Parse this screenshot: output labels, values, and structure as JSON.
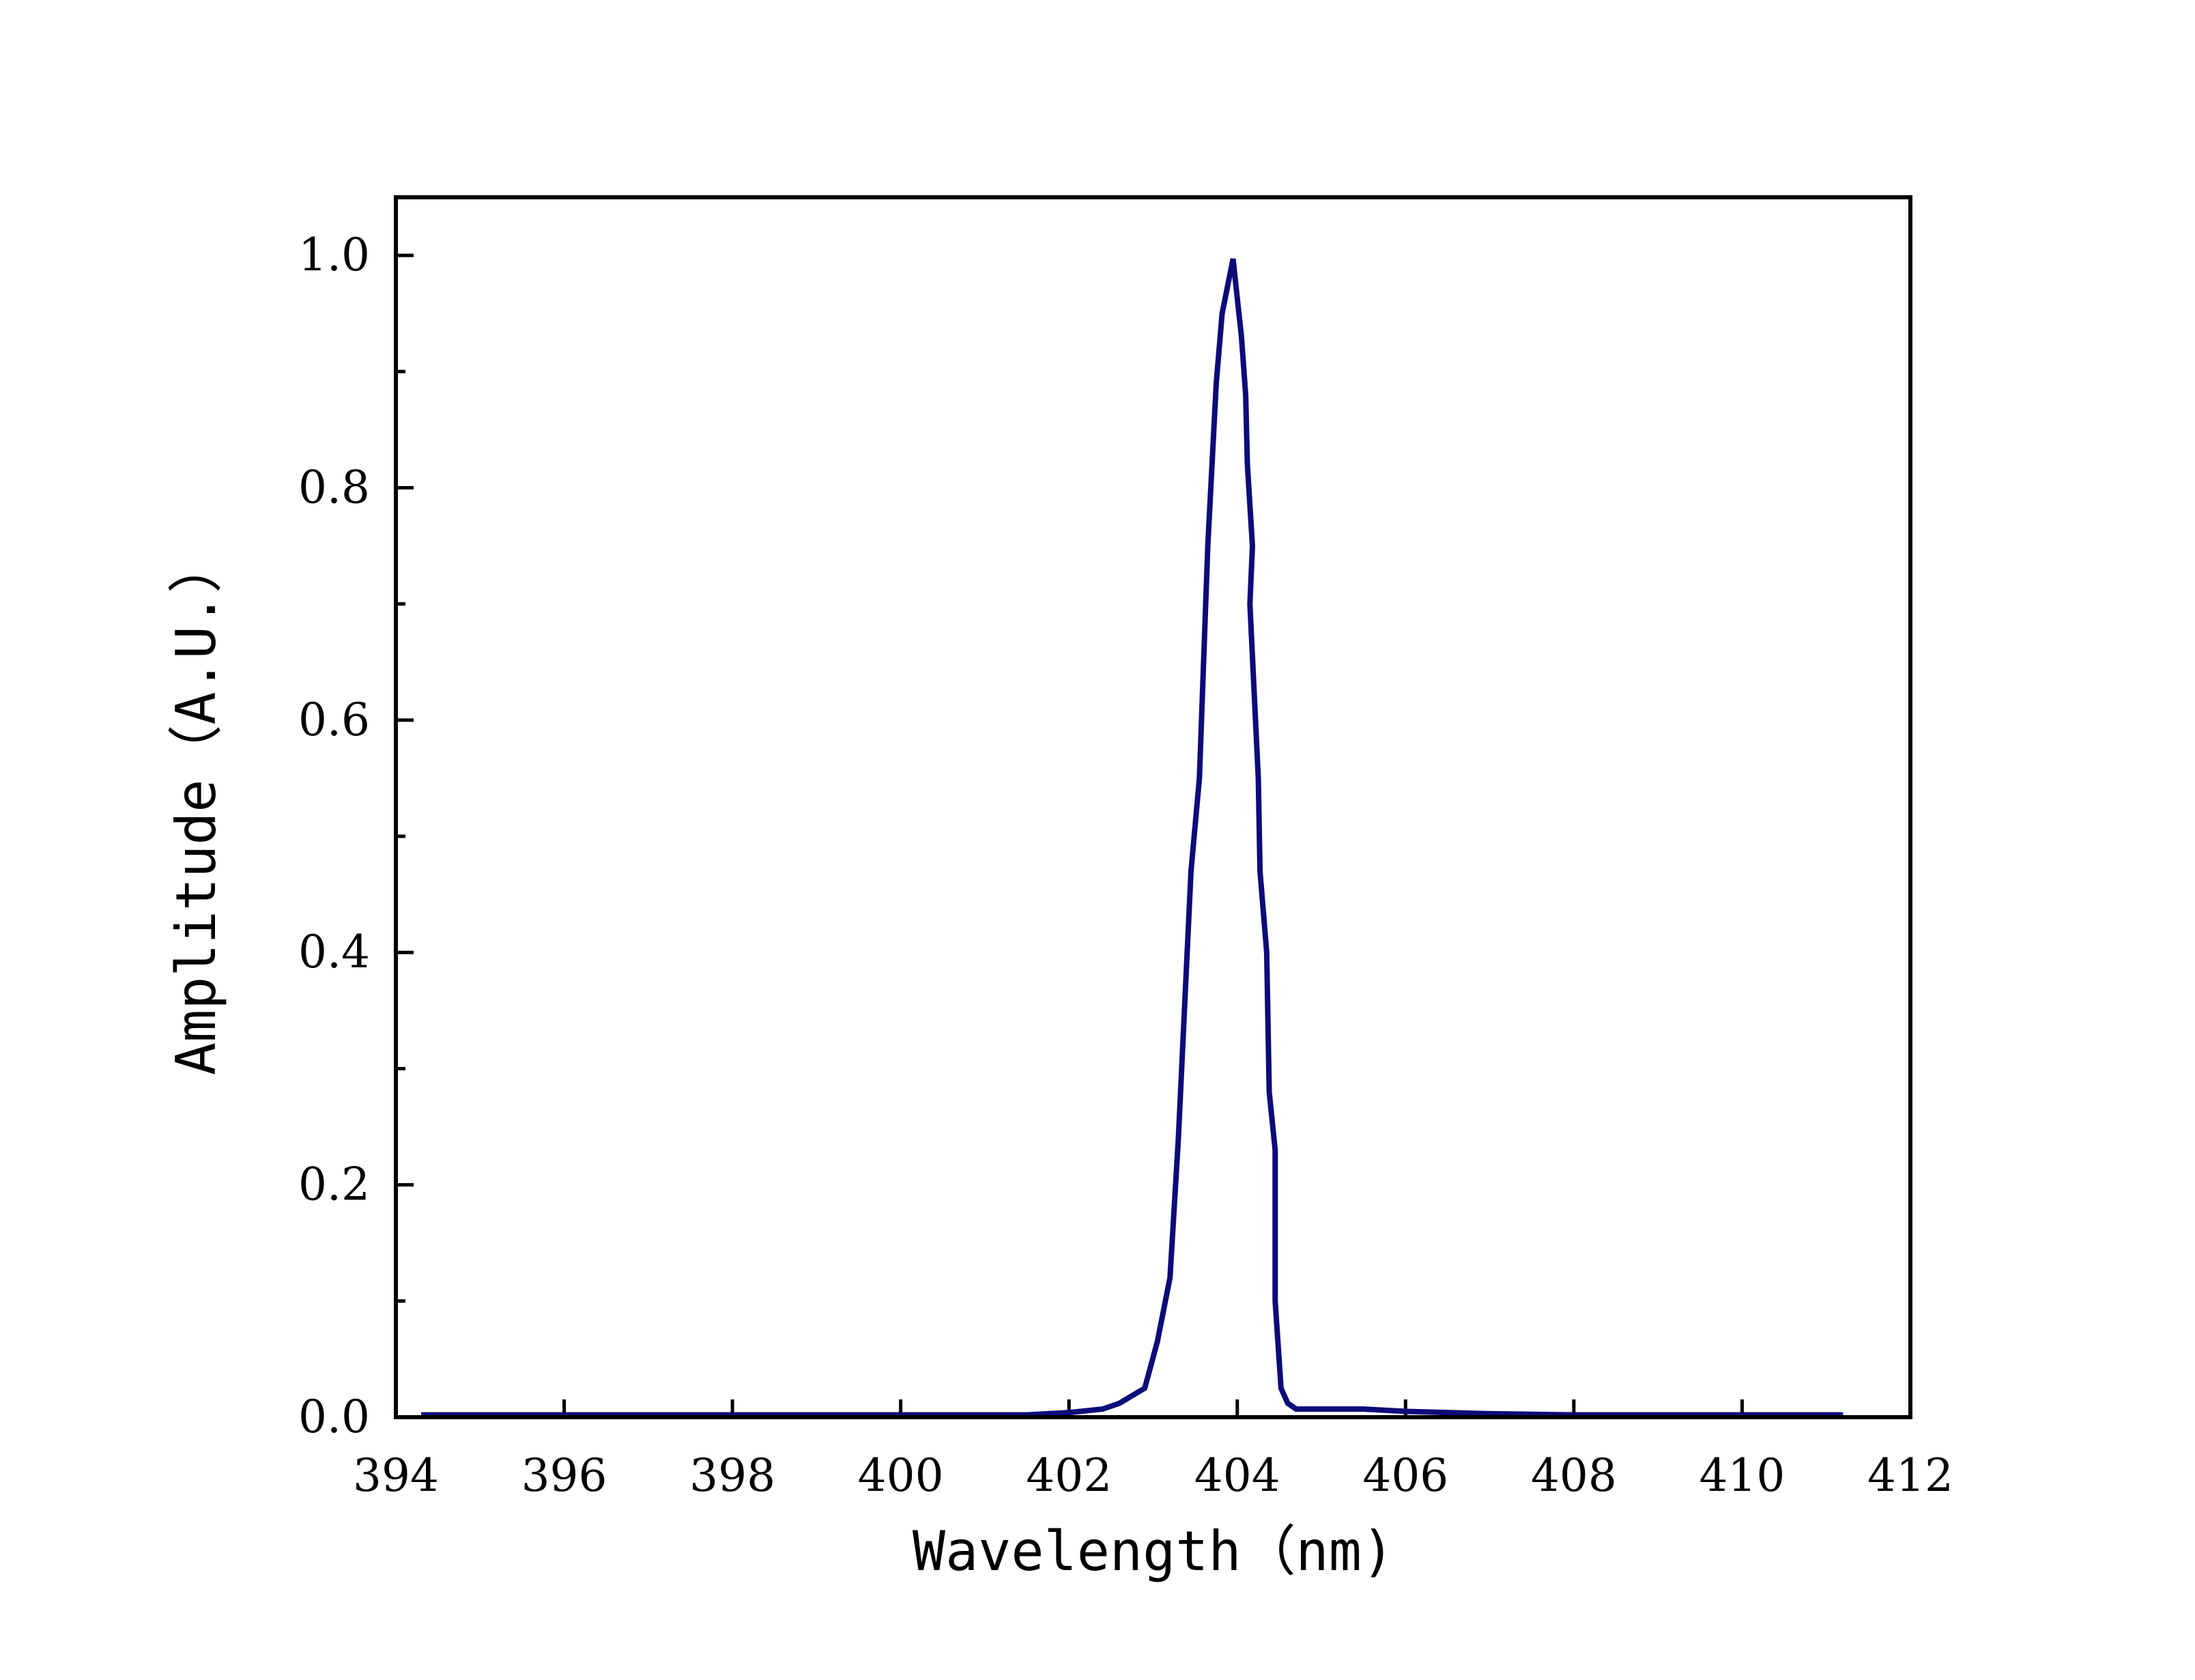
{
  "chart_data": {
    "type": "line",
    "xlabel": "Wavelength（nm)",
    "ylabel": "Amplitude（A.U.）",
    "xlim": [
      394,
      412
    ],
    "ylim": [
      0,
      1.05
    ],
    "x_ticks": [
      394,
      396,
      398,
      400,
      402,
      404,
      406,
      408,
      410,
      412
    ],
    "x_tick_labels": [
      "394",
      "396",
      "398",
      "400",
      "402",
      "404",
      "406",
      "408",
      "410",
      "412"
    ],
    "y_ticks": [
      0.0,
      0.2,
      0.4,
      0.6,
      0.8,
      1.0
    ],
    "y_tick_labels": [
      "0.0",
      "0.2",
      "0.4",
      "0.6",
      "0.8",
      "1.0"
    ],
    "y_minor_ticks": [
      0.1,
      0.3,
      0.5,
      0.7,
      0.9
    ],
    "grid": false,
    "line_color": "#0b0b7a",
    "series": [
      {
        "x": [
          394.3,
          401.5,
          402.0,
          402.4,
          402.6,
          402.9,
          403.05,
          403.2,
          403.3,
          403.45,
          403.55,
          403.65,
          403.75,
          403.82,
          403.95,
          404.05,
          404.1,
          404.12,
          404.18,
          404.15,
          404.25,
          404.27,
          404.35,
          404.38,
          404.45,
          404.45,
          404.52,
          404.6,
          404.7,
          404.85,
          405.5,
          406.0,
          407.0,
          408.0,
          411.2
        ],
        "y": [
          0.002,
          0.002,
          0.004,
          0.007,
          0.012,
          0.025,
          0.065,
          0.12,
          0.24,
          0.47,
          0.55,
          0.75,
          0.89,
          0.95,
          0.997,
          0.93,
          0.88,
          0.82,
          0.75,
          0.7,
          0.55,
          0.47,
          0.4,
          0.28,
          0.23,
          0.1,
          0.025,
          0.012,
          0.007,
          0.007,
          0.007,
          0.005,
          0.003,
          0.002,
          0.002
        ]
      }
    ]
  }
}
